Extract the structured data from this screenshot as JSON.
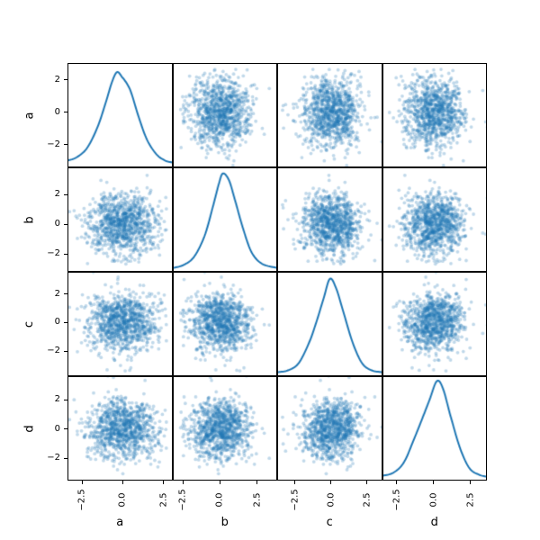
{
  "figure": {
    "background": "#ffffff",
    "spine_color": "#000000",
    "tick_color": "#000000",
    "text_color": "#000000"
  },
  "chart_data": {
    "type": "scatter_matrix",
    "title": "",
    "variables": [
      "a",
      "b",
      "c",
      "d"
    ],
    "diagonal": "kde",
    "grid": false,
    "legend": false,
    "n_points": 1000,
    "seed": 20,
    "mean": 0,
    "sigma": 1.05,
    "point_color": "#1f77b4",
    "point_alpha": 0.28,
    "point_radius": 1.9,
    "line_color": "#1f77b4",
    "line_width": 2,
    "x_ticks": {
      "values": [
        -2.5,
        0.0,
        2.5
      ],
      "labels": [
        "−2.5",
        "0.0",
        "2.5"
      ]
    },
    "y_ticks": {
      "values": [
        2,
        0,
        -2
      ],
      "labels": [
        "2",
        "0",
        "−2"
      ]
    },
    "axis_limits": {
      "a": [
        -3.4,
        3.05
      ],
      "b": [
        -3.2,
        3.85
      ],
      "c": [
        -3.75,
        3.55
      ],
      "d": [
        -3.5,
        3.6
      ]
    },
    "kde_curves": {
      "a": [
        [
          0,
          0.06
        ],
        [
          0.08,
          0.09
        ],
        [
          0.18,
          0.18
        ],
        [
          0.28,
          0.38
        ],
        [
          0.36,
          0.62
        ],
        [
          0.42,
          0.82
        ],
        [
          0.47,
          0.92
        ],
        [
          0.52,
          0.87
        ],
        [
          0.57,
          0.8
        ],
        [
          0.61,
          0.71
        ],
        [
          0.68,
          0.48
        ],
        [
          0.76,
          0.26
        ],
        [
          0.85,
          0.12
        ],
        [
          0.93,
          0.06
        ],
        [
          1,
          0.04
        ]
      ],
      "b": [
        [
          0,
          0.03
        ],
        [
          0.1,
          0.06
        ],
        [
          0.2,
          0.14
        ],
        [
          0.3,
          0.34
        ],
        [
          0.38,
          0.62
        ],
        [
          0.44,
          0.85
        ],
        [
          0.48,
          0.95
        ],
        [
          0.54,
          0.88
        ],
        [
          0.6,
          0.68
        ],
        [
          0.68,
          0.4
        ],
        [
          0.76,
          0.18
        ],
        [
          0.86,
          0.07
        ],
        [
          1,
          0.03
        ]
      ],
      "c": [
        [
          0,
          0.03
        ],
        [
          0.1,
          0.05
        ],
        [
          0.2,
          0.12
        ],
        [
          0.3,
          0.32
        ],
        [
          0.37,
          0.52
        ],
        [
          0.44,
          0.75
        ],
        [
          0.5,
          0.94
        ],
        [
          0.56,
          0.85
        ],
        [
          0.63,
          0.62
        ],
        [
          0.72,
          0.32
        ],
        [
          0.81,
          0.12
        ],
        [
          0.9,
          0.05
        ],
        [
          1,
          0.03
        ]
      ],
      "d": [
        [
          0,
          0.04
        ],
        [
          0.1,
          0.07
        ],
        [
          0.2,
          0.17
        ],
        [
          0.3,
          0.4
        ],
        [
          0.38,
          0.6
        ],
        [
          0.45,
          0.78
        ],
        [
          0.52,
          0.96
        ],
        [
          0.58,
          0.89
        ],
        [
          0.66,
          0.6
        ],
        [
          0.75,
          0.3
        ],
        [
          0.84,
          0.11
        ],
        [
          0.93,
          0.05
        ],
        [
          1,
          0.03
        ]
      ]
    }
  }
}
